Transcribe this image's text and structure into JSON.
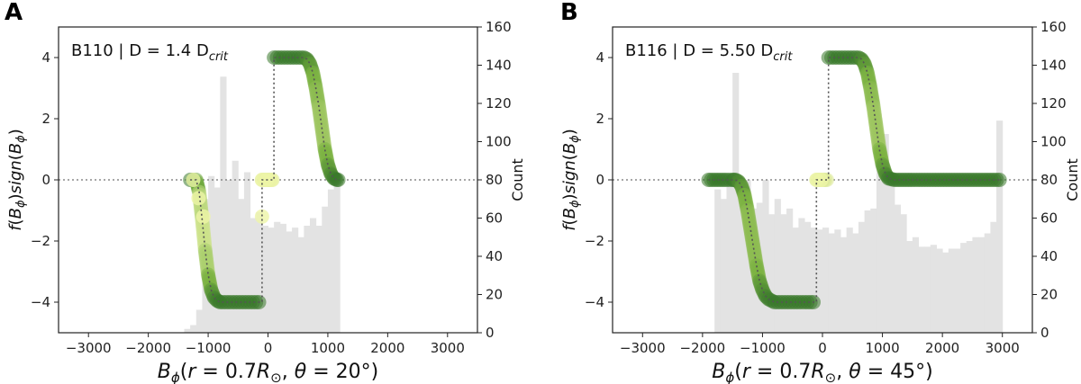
{
  "chart_data": [
    {
      "panel_label": "A",
      "type": "line",
      "annotation": {
        "text": "B110 | D = 1.4 D",
        "sub": "crit"
      },
      "xlabel": "B_ϕ(r = 0.7R_⊙, θ = 20°)",
      "ylabel": "f(B_ϕ)sign(B_ϕ)",
      "y2label": "Count",
      "xlim": [
        -3500,
        3500
      ],
      "ylim": [
        -5,
        5
      ],
      "y2lim": [
        0,
        160
      ],
      "xticks": [
        -3000,
        -2000,
        -1000,
        0,
        1000,
        2000,
        3000
      ],
      "yticks": [
        -4,
        -2,
        0,
        2,
        4
      ],
      "y2ticks": [
        0,
        20,
        40,
        60,
        80,
        100,
        120,
        140,
        160
      ],
      "histogram": {
        "bin_edges": [
          -1400,
          -1300,
          -1200,
          -1100,
          -1000,
          -900,
          -800,
          -700,
          -600,
          -500,
          -400,
          -300,
          -200,
          -100,
          0,
          100,
          200,
          300,
          400,
          500,
          600,
          700,
          800,
          900,
          1000,
          1100,
          1200
        ],
        "counts": [
          2,
          4,
          12,
          70,
          82,
          76,
          134,
          80,
          90,
          70,
          84,
          60,
          63,
          56,
          55,
          58,
          57,
          53,
          55,
          50,
          56,
          60,
          56,
          66,
          75,
          84
        ]
      },
      "curve": {
        "x": [
          -1300,
          -1200,
          -1150,
          -1100,
          -1050,
          -1000,
          -950,
          -900,
          -850,
          -800,
          -700,
          -600,
          -500,
          -400,
          -300,
          -200,
          -100,
          -100,
          -50,
          0,
          50,
          100,
          100,
          200,
          300,
          400,
          500,
          600,
          650,
          700,
          750,
          800,
          850,
          900,
          950,
          1000,
          1050,
          1100,
          1150,
          1200
        ],
        "y": [
          0,
          0,
          -0.4,
          -1.3,
          -2.3,
          -3.1,
          -3.6,
          -3.85,
          -3.95,
          -4,
          -4,
          -4,
          -4,
          -4,
          -4,
          -4,
          -4,
          0,
          0,
          0,
          0,
          0,
          4,
          4,
          4,
          4,
          4,
          4,
          3.95,
          3.8,
          3.5,
          3.0,
          2.4,
          1.7,
          1.0,
          0.5,
          0.2,
          0.05,
          0,
          0
        ]
      },
      "scatter": [
        {
          "x": -1250,
          "y": 0
        },
        {
          "x": -1160,
          "y": -0.6
        },
        {
          "x": -1080,
          "y": -1.2
        },
        {
          "x": -100,
          "y": -1.2
        },
        {
          "x": -100,
          "y": 0
        },
        {
          "x": -20,
          "y": 0
        },
        {
          "x": 60,
          "y": 0
        }
      ],
      "hline": 0
    },
    {
      "panel_label": "B",
      "type": "line",
      "annotation": {
        "text": "B116 | D = 5.50 D",
        "sub": "crit"
      },
      "xlabel": "B_ϕ(r = 0.7R_⊙, θ = 45°)",
      "ylabel": "f(B_ϕ)sign(B_ϕ)",
      "y2label": "Count",
      "xlim": [
        -3500,
        3500
      ],
      "ylim": [
        -5,
        5
      ],
      "y2lim": [
        0,
        160
      ],
      "xticks": [
        -3000,
        -2000,
        -1000,
        0,
        1000,
        2000,
        3000
      ],
      "yticks": [
        -4,
        -2,
        0,
        2,
        4
      ],
      "y2ticks": [
        0,
        20,
        40,
        60,
        80,
        100,
        120,
        140,
        160
      ],
      "histogram": {
        "bin_edges": [
          -1800,
          -1700,
          -1600,
          -1500,
          -1400,
          -1300,
          -1200,
          -1100,
          -1000,
          -900,
          -800,
          -700,
          -600,
          -500,
          -400,
          -300,
          -200,
          -100,
          0,
          100,
          200,
          300,
          400,
          500,
          600,
          700,
          800,
          900,
          1000,
          1100,
          1200,
          1300,
          1400,
          1500,
          1600,
          1700,
          1800,
          1900,
          2000,
          2100,
          2200,
          2300,
          2400,
          2500,
          2600,
          2700,
          2800,
          2900
        ],
        "counts": [
          75,
          70,
          82,
          136,
          80,
          80,
          65,
          68,
          80,
          62,
          70,
          62,
          65,
          55,
          60,
          58,
          55,
          54,
          55,
          52,
          54,
          50,
          55,
          52,
          58,
          64,
          65,
          98,
          104,
          78,
          67,
          62,
          48,
          50,
          45,
          45,
          46,
          44,
          42,
          44,
          44,
          47,
          48,
          50,
          50,
          52,
          58,
          111
        ]
      },
      "curve": {
        "x": [
          -1900,
          -1600,
          -1500,
          -1450,
          -1400,
          -1350,
          -1300,
          -1250,
          -1200,
          -1150,
          -1100,
          -1050,
          -1000,
          -950,
          -900,
          -800,
          -700,
          -600,
          -500,
          -400,
          -300,
          -200,
          -100,
          -100,
          -50,
          0,
          50,
          100,
          100,
          200,
          300,
          400,
          500,
          600,
          650,
          700,
          750,
          800,
          850,
          900,
          950,
          1000,
          1050,
          1100,
          1200,
          1500,
          2000,
          2500,
          3000
        ],
        "y": [
          0,
          0,
          0,
          0,
          -0.05,
          -0.2,
          -0.5,
          -1.0,
          -1.6,
          -2.2,
          -2.8,
          -3.3,
          -3.6,
          -3.8,
          -3.9,
          -4,
          -4,
          -4,
          -4,
          -4,
          -4,
          -4,
          -4,
          0,
          0,
          0,
          0,
          0,
          4,
          4,
          4,
          4,
          4,
          4,
          3.95,
          3.8,
          3.5,
          3.0,
          2.4,
          1.7,
          1.0,
          0.5,
          0.2,
          0.05,
          0,
          0,
          0,
          0,
          0
        ]
      },
      "scatter": [
        {
          "x": -100,
          "y": 0
        },
        {
          "x": -20,
          "y": 0
        }
      ],
      "hline": 0
    }
  ]
}
